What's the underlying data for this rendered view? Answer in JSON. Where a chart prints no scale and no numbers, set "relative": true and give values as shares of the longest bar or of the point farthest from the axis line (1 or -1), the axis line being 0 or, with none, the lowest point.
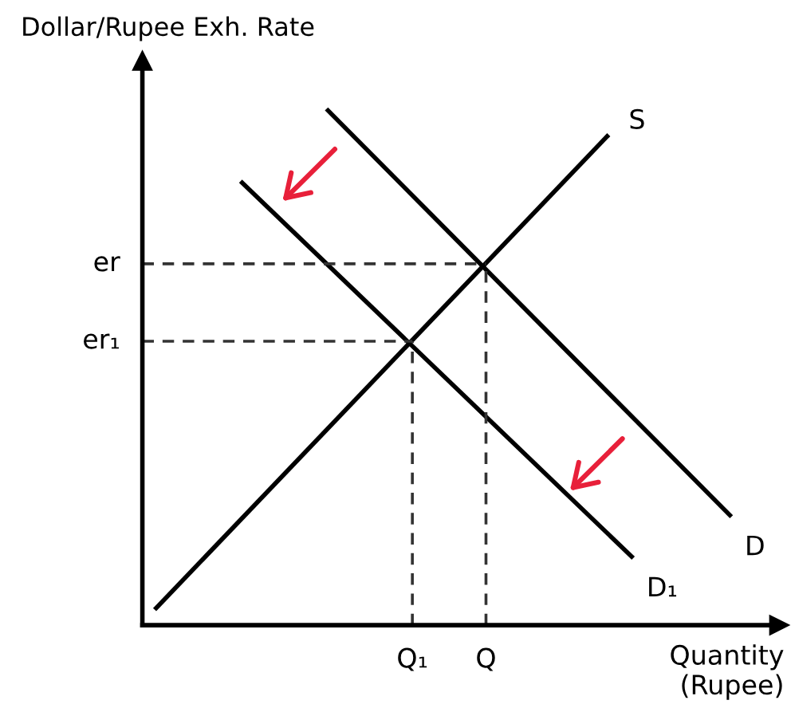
{
  "chart_data": {
    "type": "line",
    "relative": true,
    "xlabel": "Quantity\n(Rupee)",
    "ylabel": "Dollar/Rupee Exh. Rate",
    "line_style": "solid",
    "categories": [
      null,
      null,
      null,
      null,
      null,
      null,
      null,
      null,
      null,
      null,
      null,
      null,
      null,
      null,
      null,
      null,
      null,
      null,
      null,
      null,
      null,
      null,
      "Q₁",
      null,
      null,
      null,
      null,
      null,
      "Q",
      null,
      null,
      null,
      null,
      null,
      null,
      null,
      null,
      null,
      null,
      null,
      null,
      null,
      null,
      null,
      null,
      null,
      null,
      null,
      null
    ],
    "ref_lines": [
      {
        "axis": "y",
        "value": 0.7,
        "label": "er",
        "color": "#333333",
        "line_style": "dashed"
      },
      {
        "axis": "x",
        "value": "Q",
        "color": "#333333",
        "line_style": "dashed"
      },
      {
        "axis": "y",
        "value": 0.55,
        "label": "er₁",
        "color": "#333333",
        "line_style": "dashed"
      },
      {
        "axis": "x",
        "value": "Q₁",
        "color": "#333333",
        "line_style": "dashed"
      }
    ],
    "series": [
      {
        "name": "S",
        "color": "#000000",
        "values": [
          null,
          0.03,
          null,
          null,
          null,
          null,
          null,
          null,
          null,
          null,
          null,
          null,
          null,
          null,
          null,
          null,
          null,
          null,
          null,
          null,
          null,
          null,
          null,
          null,
          null,
          null,
          null,
          null,
          null,
          null,
          null,
          null,
          null,
          null,
          null,
          null,
          null,
          null,
          0.95,
          null,
          null,
          null,
          null,
          null,
          null,
          null,
          null,
          null,
          null
        ]
      },
      {
        "name": "D",
        "color": "#000000",
        "values": [
          null,
          null,
          null,
          null,
          null,
          null,
          null,
          null,
          null,
          null,
          null,
          null,
          null,
          null,
          null,
          1.0,
          null,
          null,
          null,
          null,
          null,
          null,
          null,
          null,
          null,
          null,
          null,
          null,
          null,
          null,
          null,
          null,
          null,
          null,
          null,
          null,
          null,
          null,
          null,
          null,
          null,
          null,
          null,
          null,
          null,
          null,
          null,
          null,
          0.21
        ]
      },
      {
        "name": "D₁",
        "color": "#000000",
        "values": [
          null,
          null,
          null,
          null,
          null,
          null,
          null,
          null,
          0.86,
          null,
          null,
          null,
          null,
          null,
          null,
          null,
          null,
          null,
          null,
          null,
          null,
          null,
          null,
          null,
          null,
          null,
          null,
          null,
          null,
          null,
          null,
          null,
          null,
          null,
          null,
          null,
          null,
          null,
          null,
          null,
          0.13,
          null,
          null,
          null,
          null,
          null,
          null,
          null,
          null
        ]
      }
    ]
  }
}
